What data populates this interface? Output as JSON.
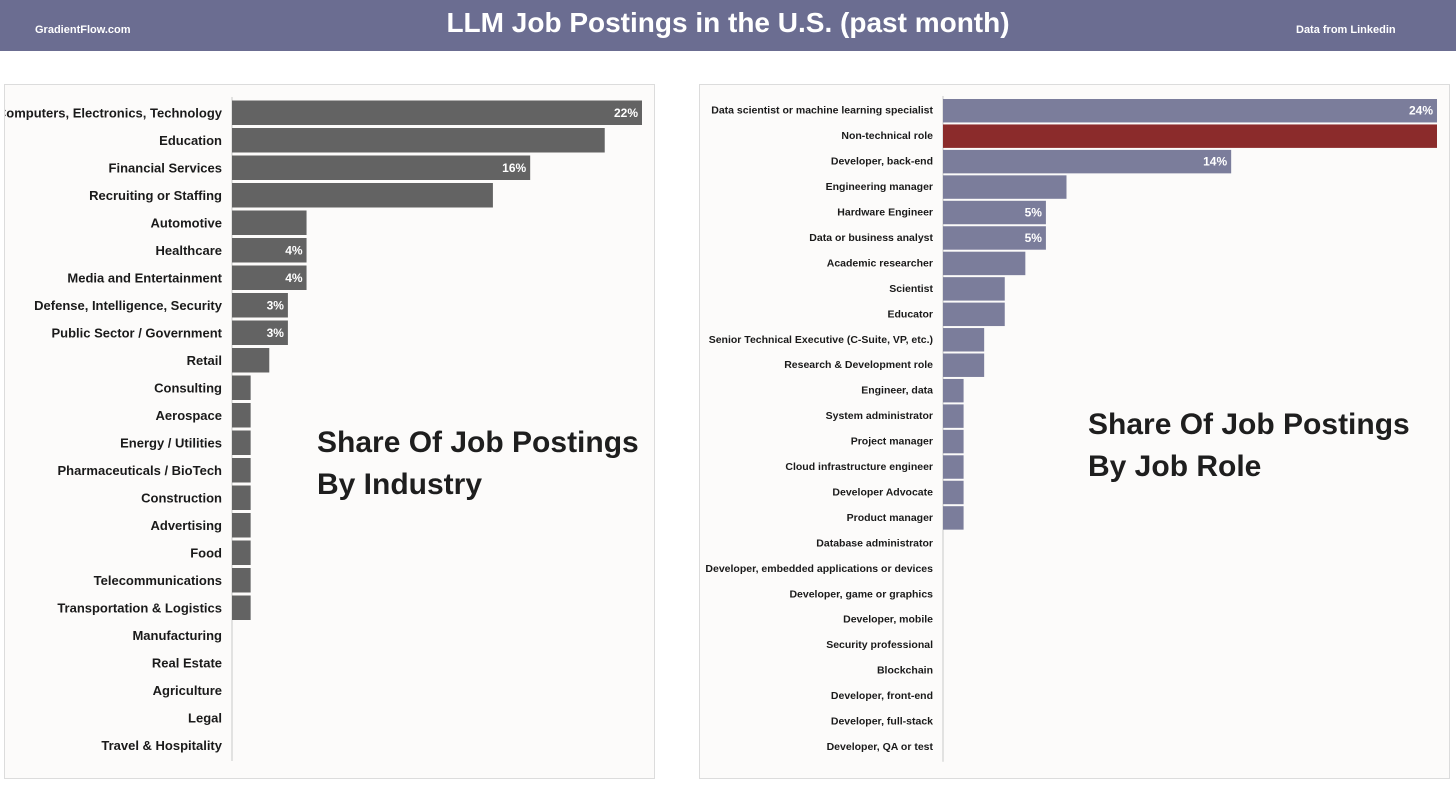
{
  "header": {
    "brand": "GradientFlow.com",
    "title": "LLM Job Postings in the U.S. (past month)",
    "source": "Data from Linkedin",
    "background_color": "#6b6d91"
  },
  "chart_data": [
    {
      "type": "bar",
      "orientation": "horizontal",
      "annotation_line1": "Share Of Job Postings",
      "annotation_line2": "By Industry",
      "bar_color": "#636363",
      "xlim": [
        0,
        22
      ],
      "categories": [
        "Computers, Electronics, Technology",
        "Education",
        "Financial Services",
        "Recruiting or Staffing",
        "Automotive",
        "Healthcare",
        "Media and Entertainment",
        "Defense, Intelligence, Security",
        "Public Sector / Government",
        "Retail",
        "Consulting",
        "Aerospace",
        "Energy / Utilities",
        "Pharmaceuticals / BioTech",
        "Construction",
        "Advertising",
        "Food",
        "Telecommunications",
        "Transportation & Logistics",
        "Manufacturing",
        "Real Estate",
        "Agriculture",
        "Legal",
        "Travel & Hospitality"
      ],
      "values": [
        22,
        20,
        16,
        14,
        4,
        4,
        4,
        3,
        3,
        2,
        1,
        1,
        1,
        1,
        1,
        1,
        1,
        1,
        1,
        0,
        0,
        0,
        0,
        0
      ],
      "data_labels": [
        "22%",
        "",
        "16%",
        "",
        "",
        "4%",
        "4%",
        "3%",
        "3%",
        "",
        "",
        "",
        "",
        "",
        "",
        "",
        "",
        "",
        "",
        "",
        "",
        "",
        "",
        ""
      ]
    },
    {
      "type": "bar",
      "orientation": "horizontal",
      "annotation_line1": "Share Of Job Postings",
      "annotation_line2": "By Job Role",
      "bar_color": "#7b7d9b",
      "highlight_color": "#8b2b2b",
      "highlight_index": 1,
      "xlim": [
        0,
        24
      ],
      "categories": [
        "Data scientist or machine learning specialist",
        "Non-technical role",
        "Developer, back-end",
        "Engineering manager",
        "Hardware Engineer",
        "Data or business analyst",
        "Academic researcher",
        "Scientist",
        "Educator",
        "Senior Technical Executive (C-Suite, VP, etc.)",
        "Research & Development role",
        "Engineer, data",
        "System administrator",
        "Project manager",
        "Cloud infrastructure engineer",
        "Developer Advocate",
        "Product manager",
        "Database administrator",
        "Developer, embedded applications or devices",
        "Developer, game or graphics",
        "Developer, mobile",
        "Security professional",
        "Blockchain",
        "Developer, front-end",
        "Developer, full-stack",
        "Developer, QA or test"
      ],
      "values": [
        24,
        24,
        14,
        6,
        5,
        5,
        4,
        3,
        3,
        2,
        2,
        1,
        1,
        1,
        1,
        1,
        1,
        0,
        0,
        0,
        0,
        0,
        0,
        0,
        0,
        0
      ],
      "data_labels": [
        "24%",
        "",
        "14%",
        "",
        "5%",
        "5%",
        "",
        "",
        "",
        "",
        "",
        "",
        "",
        "",
        "",
        "",
        "",
        "",
        "",
        "",
        "",
        "",
        "",
        "",
        "",
        ""
      ]
    }
  ]
}
